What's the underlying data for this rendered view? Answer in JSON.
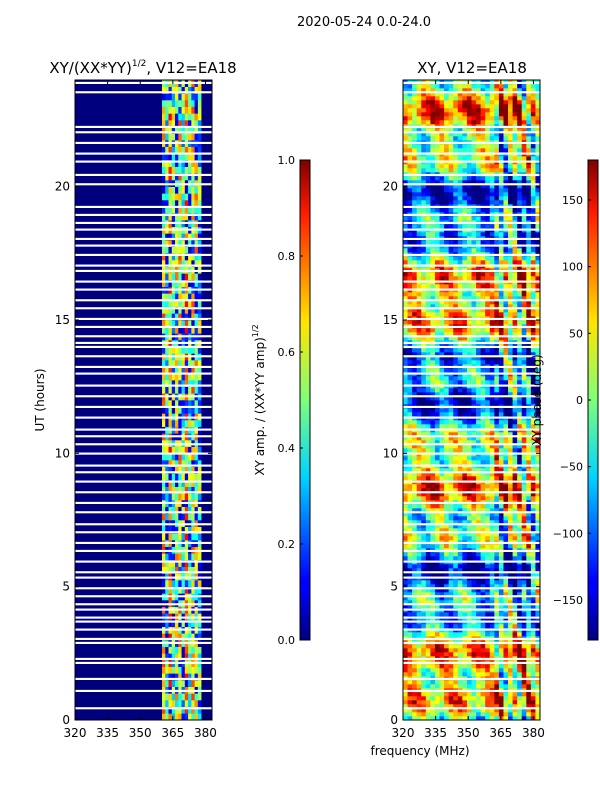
{
  "figure_title": "2020-05-24 0.0-24.0",
  "xlabel": "frequency (MHz)",
  "chart_data": [
    {
      "type": "heatmap",
      "title_main": "XY/(XX*YY)",
      "title_sup": "1/2",
      "title_tail": ", V12=EA18",
      "xlabel": "frequency (MHz)",
      "ylabel": "UT (hours)",
      "xlim": [
        320,
        383
      ],
      "ylim": [
        0,
        24
      ],
      "xticks": [
        320,
        335,
        350,
        365,
        380
      ],
      "xtick_labels": [
        "320",
        "335",
        "350",
        "365",
        "380"
      ],
      "yticks": [
        0,
        5,
        10,
        15,
        20
      ],
      "ytick_labels": [
        "0",
        "5",
        "10",
        "15",
        "20"
      ],
      "colormap": "jet",
      "colorbar": {
        "label_main": "XY amp. / (XX*YY amp)",
        "label_sup": "1/2",
        "range": [
          0.0,
          1.0
        ],
        "ticks": [
          0.0,
          0.2,
          0.4,
          0.6,
          0.8,
          1.0
        ],
        "tick_labels": [
          "0.0",
          "0.2",
          "0.4",
          "0.6",
          "0.8",
          "1.0"
        ]
      },
      "notes": "Values near 0 below ~360 MHz; 0.2–0.9 in channels ~360–378 MHz",
      "low_region_value": 0.02,
      "active_band_mhz": [
        360,
        378
      ],
      "active_band_value_range": [
        0.2,
        0.9
      ]
    },
    {
      "type": "heatmap",
      "title": "XY, V12=EA18",
      "xlabel": "frequency (MHz)",
      "ylabel": "",
      "xlim": [
        320,
        383
      ],
      "ylim": [
        0,
        24
      ],
      "xticks": [
        320,
        335,
        350,
        365,
        380
      ],
      "xtick_labels": [
        "320",
        "335",
        "350",
        "365",
        "380"
      ],
      "yticks": [
        0,
        5,
        10,
        15,
        20
      ],
      "ytick_labels": [
        "0",
        "5",
        "10",
        "15",
        "20"
      ],
      "colormap": "jet",
      "colorbar": {
        "label": "XY phase (deg)",
        "range": [
          -180,
          180
        ],
        "ticks": [
          -150,
          -100,
          -50,
          0,
          50,
          100,
          150
        ],
        "tick_labels": [
          "−150",
          "−100",
          "−50",
          "0",
          "50",
          "100",
          "150"
        ]
      },
      "value_range_deg": [
        -180,
        180
      ]
    }
  ],
  "flagged_hours": [
    0.4,
    1.05,
    1.5,
    2.1,
    2.25,
    2.85,
    3.0,
    3.35,
    3.65,
    3.8,
    4.1,
    4.3,
    4.6,
    4.9,
    5.3,
    5.5,
    5.9,
    6.3,
    6.6,
    7.0,
    7.3,
    7.75,
    8.1,
    8.5,
    8.9,
    9.25,
    9.5,
    9.95,
    10.3,
    10.6,
    10.85,
    11.3,
    11.7,
    12.1,
    12.5,
    12.95,
    13.2,
    13.6,
    13.95,
    14.1,
    14.35,
    14.7,
    15.0,
    15.4,
    15.7,
    16.1,
    16.4,
    16.8,
    17.0,
    17.4,
    17.75,
    18.0,
    18.35,
    18.6,
    18.9,
    19.2,
    20.05,
    20.4,
    20.9,
    21.2,
    21.6,
    22.0,
    22.2,
    23.5,
    23.85
  ]
}
